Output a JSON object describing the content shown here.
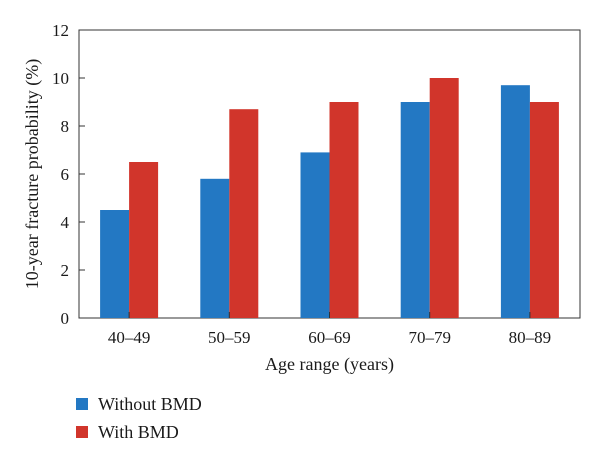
{
  "chart_data": {
    "type": "bar",
    "categories": [
      "40–49",
      "50–59",
      "60–69",
      "70–79",
      "80–89"
    ],
    "series": [
      {
        "name": "Without BMD",
        "color": "#2378c3",
        "values": [
          4.5,
          5.8,
          6.9,
          9.0,
          9.7
        ]
      },
      {
        "name": "With BMD",
        "color": "#d1352b",
        "values": [
          6.5,
          8.7,
          9.0,
          10.0,
          9.0
        ]
      }
    ],
    "xlabel": "Age range (years)",
    "ylabel": "10-year fracture probability (%)",
    "ylim": [
      0,
      12
    ],
    "yticks": [
      "0",
      "2",
      "4",
      "6",
      "8",
      "10",
      "12"
    ],
    "grid": false,
    "legend_position": "bottom-left"
  }
}
